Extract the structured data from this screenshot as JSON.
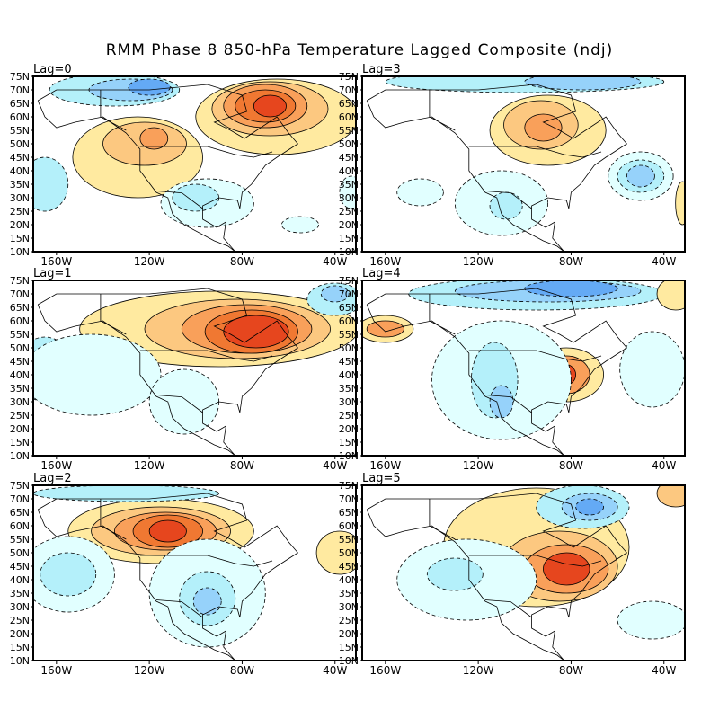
{
  "chart_data": {
    "type": "heatmap",
    "title": "RMM Phase 8 850-hPa Temperature Lagged Composite (ndj)",
    "lat_ticks": [
      "75N",
      "70N",
      "65N",
      "60N",
      "55N",
      "50N",
      "45N",
      "40N",
      "35N",
      "30N",
      "25N",
      "20N",
      "15N",
      "10N"
    ],
    "lon_ticks": [
      "160W",
      "120W",
      "80W",
      "40W"
    ],
    "lon_range": [
      -170,
      -31
    ],
    "lat_range": [
      10,
      75
    ],
    "colors": {
      "-4": "#3c8cf0",
      "-3": "#64aaf5",
      "-2": "#96d2fa",
      "-1": "#b4f0fa",
      "-0": "#e1ffff",
      "0": "#ffeaa0",
      "1": "#fcc880",
      "2": "#f9a05a",
      "3": "#f07832",
      "4": "#e6461e",
      "5": "#d9250c"
    },
    "panels": [
      {
        "label": "Lag=0",
        "features": [
          [
            -135,
            70,
            28,
            6,
            -1
          ],
          [
            -128,
            70,
            18,
            4,
            -2
          ],
          [
            -120,
            71,
            9,
            3,
            -3
          ],
          [
            -125,
            45,
            28,
            15,
            0
          ],
          [
            -122,
            50,
            18,
            8,
            1
          ],
          [
            -118,
            52,
            6,
            4,
            2
          ],
          [
            -65,
            60,
            35,
            14,
            0
          ],
          [
            -68,
            63,
            25,
            10,
            1
          ],
          [
            -70,
            64,
            18,
            8,
            2
          ],
          [
            -70,
            64,
            13,
            6,
            3
          ],
          [
            -68,
            64,
            7,
            4,
            4
          ],
          [
            -95,
            28,
            20,
            9,
            0
          ],
          [
            -100,
            30,
            10,
            5,
            -1
          ],
          [
            -165,
            35,
            10,
            10,
            -1
          ],
          [
            -55,
            20,
            8,
            3,
            0
          ],
          [
            -33,
            32,
            5,
            6,
            0
          ]
        ]
      },
      {
        "label": "Lag=3",
        "features": [
          [
            -100,
            73,
            60,
            4,
            -1
          ],
          [
            -75,
            73,
            25,
            3,
            -2
          ],
          [
            -90,
            55,
            25,
            13,
            0
          ],
          [
            -93,
            57,
            16,
            9,
            1
          ],
          [
            -92,
            56,
            8,
            5,
            2
          ],
          [
            -50,
            38,
            14,
            9,
            0
          ],
          [
            -50,
            38,
            10,
            6,
            -1
          ],
          [
            -50,
            38,
            6,
            4,
            -2
          ],
          [
            -110,
            28,
            20,
            12,
            0
          ],
          [
            -108,
            27,
            7,
            5,
            -1
          ],
          [
            -145,
            32,
            10,
            5,
            0
          ],
          [
            -32,
            28,
            3,
            8,
            0
          ]
        ]
      },
      {
        "label": "Lag=1",
        "features": [
          [
            -90,
            57,
            60,
            14,
            0
          ],
          [
            -82,
            57,
            40,
            11,
            1
          ],
          [
            -78,
            57,
            28,
            9,
            2
          ],
          [
            -76,
            56,
            20,
            8,
            3
          ],
          [
            -74,
            56,
            14,
            6,
            4
          ],
          [
            -165,
            42,
            12,
            12,
            -1
          ],
          [
            -145,
            40,
            30,
            15,
            0
          ],
          [
            -105,
            30,
            15,
            12,
            0
          ],
          [
            -40,
            68,
            12,
            6,
            -1
          ],
          [
            -40,
            70,
            6,
            3,
            -2
          ]
        ]
      },
      {
        "label": "Lag=4",
        "features": [
          [
            -95,
            70,
            55,
            6,
            -1
          ],
          [
            -90,
            71,
            40,
            4,
            -2
          ],
          [
            -80,
            72,
            20,
            3,
            -3
          ],
          [
            -160,
            57,
            12,
            5,
            0
          ],
          [
            -160,
            57,
            8,
            3,
            2
          ],
          [
            -82,
            40,
            16,
            10,
            0
          ],
          [
            -82,
            40,
            10,
            7,
            2
          ],
          [
            -83,
            40,
            5,
            4,
            4
          ],
          [
            -110,
            38,
            30,
            22,
            0
          ],
          [
            -113,
            38,
            10,
            14,
            -1
          ],
          [
            -110,
            30,
            5,
            6,
            -2
          ],
          [
            -45,
            42,
            14,
            14,
            0
          ],
          [
            -35,
            70,
            8,
            6,
            0
          ]
        ]
      },
      {
        "label": "Lag=2",
        "features": [
          [
            -115,
            58,
            40,
            12,
            0
          ],
          [
            -115,
            58,
            30,
            9,
            1
          ],
          [
            -113,
            58,
            22,
            7,
            2
          ],
          [
            -112,
            58,
            15,
            6,
            3
          ],
          [
            -112,
            58,
            8,
            4,
            4
          ],
          [
            -155,
            42,
            20,
            14,
            0
          ],
          [
            -155,
            42,
            12,
            8,
            -1
          ],
          [
            -95,
            35,
            25,
            20,
            0
          ],
          [
            -95,
            33,
            12,
            10,
            -1
          ],
          [
            -95,
            32,
            6,
            5,
            -2
          ],
          [
            -38,
            50,
            10,
            8,
            0
          ],
          [
            -130,
            72,
            40,
            3,
            -1
          ]
        ]
      },
      {
        "label": "Lag=5",
        "features": [
          [
            -95,
            52,
            40,
            22,
            0
          ],
          [
            -85,
            45,
            25,
            13,
            1
          ],
          [
            -82,
            44,
            18,
            9,
            2
          ],
          [
            -82,
            44,
            10,
            6,
            4
          ],
          [
            -75,
            67,
            20,
            8,
            -1
          ],
          [
            -72,
            67,
            12,
            5,
            -2
          ],
          [
            -72,
            67,
            6,
            3,
            -3
          ],
          [
            -125,
            40,
            30,
            15,
            0
          ],
          [
            -130,
            42,
            12,
            6,
            -1
          ],
          [
            -45,
            25,
            15,
            7,
            0
          ],
          [
            -35,
            72,
            8,
            5,
            1
          ]
        ]
      }
    ]
  }
}
